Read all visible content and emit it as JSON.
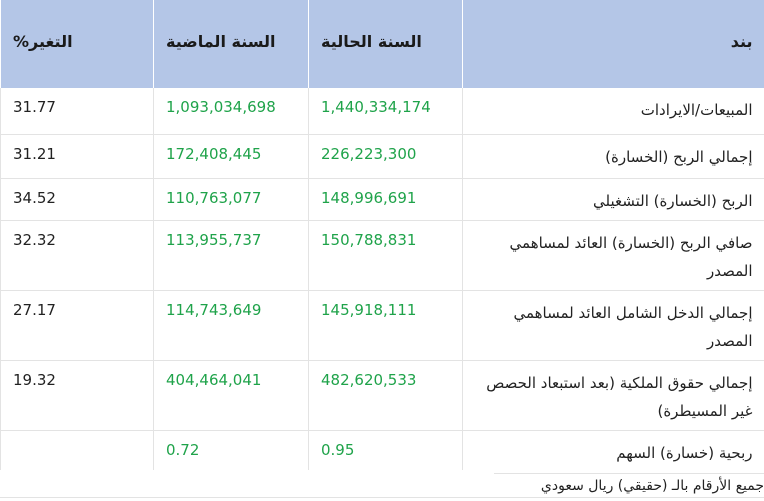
{
  "table": {
    "headers": {
      "item": "بند",
      "current_year": "السنة الحالية",
      "previous_year": "السنة الماضية",
      "change_pct": "التغير%"
    },
    "rows": [
      {
        "item": "المبيعات/الايرادات",
        "current": "1,440,334,174",
        "previous": "1,093,034,698",
        "change": "31.77"
      },
      {
        "item": "إجمالي الربح (الخسارة)",
        "current": "226,223,300",
        "previous": "172,408,445",
        "change": "31.21"
      },
      {
        "item": "الربح (الخسارة) التشغيلي",
        "current": "148,996,691",
        "previous": "110,763,077",
        "change": "34.52"
      },
      {
        "item": "صافي الربح (الخسارة) العائد لمساهمي المصدر",
        "current": "150,788,831",
        "previous": "113,955,737",
        "change": "32.32"
      },
      {
        "item": "إجمالي الدخل الشامل العائد لمساهمي المصدر",
        "current": "145,918,111",
        "previous": "114,743,649",
        "change": "27.17"
      },
      {
        "item": "إجمالي حقوق الملكية (بعد استبعاد الحصص غير المسيطرة)",
        "current": "482,620,533",
        "previous": "404,464,041",
        "change": "19.32"
      },
      {
        "item": "ربحية (خسارة) السهم",
        "current": "0.95",
        "previous": "0.72",
        "change": ""
      }
    ]
  },
  "footnote": "جميع الأرقام بالـ (حقيقي) ريال سعودي",
  "colors": {
    "header_bg": "#b4c6e7",
    "positive_value": "#1fa34a"
  }
}
